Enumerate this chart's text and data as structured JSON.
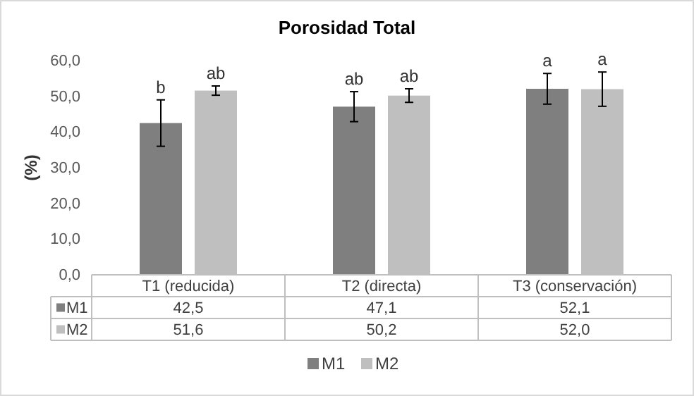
{
  "chart_data": {
    "type": "bar",
    "title": "Porosidad Total",
    "ylabel": "(%)",
    "categories": [
      "T1 (reducida)",
      "T2 (directa)",
      "T3 (conservación)"
    ],
    "series": [
      {
        "name": "M1",
        "color": "#7f7f7f",
        "values": [
          42.5,
          47.1,
          52.1
        ],
        "errors": [
          6.5,
          4.2,
          4.3
        ],
        "value_labels": [
          "42,5",
          "47,1",
          "52,1"
        ]
      },
      {
        "name": "M2",
        "color": "#bfbfbf",
        "values": [
          51.6,
          50.2,
          52.0
        ],
        "errors": [
          1.3,
          1.9,
          4.8
        ],
        "value_labels": [
          "51,6",
          "50,2",
          "52,0"
        ]
      }
    ],
    "ylim": [
      0,
      60
    ],
    "yticks": [
      {
        "value": 0,
        "label": "0,0"
      },
      {
        "value": 10,
        "label": "10,0"
      },
      {
        "value": 20,
        "label": "20,0"
      },
      {
        "value": 30,
        "label": "30,0"
      },
      {
        "value": 40,
        "label": "40,0"
      },
      {
        "value": 50,
        "label": "50,0"
      },
      {
        "value": 60,
        "label": "60,0"
      }
    ],
    "annotations": [
      "b",
      "ab",
      "ab",
      "ab",
      "a",
      "a"
    ],
    "grid": false,
    "legend": "bottom"
  }
}
